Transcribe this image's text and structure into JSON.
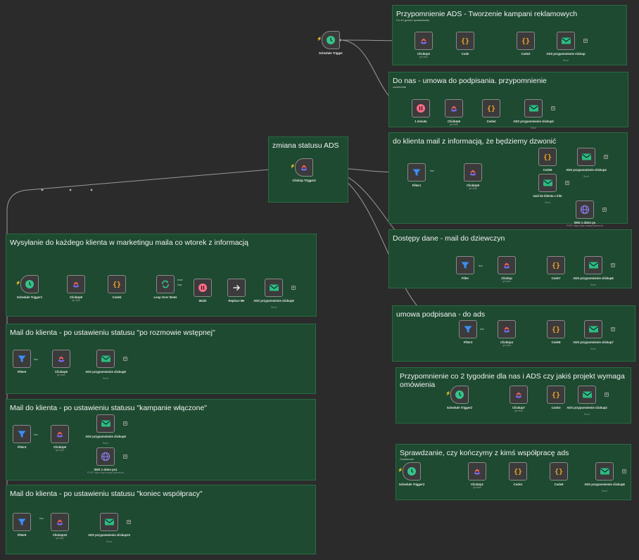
{
  "canvas": {
    "background": "#2b2b2b"
  },
  "colors": {
    "group_fill": "#1d4a30",
    "group_border": "#2a6b43",
    "node_fill": "#3b3b3b",
    "edge": "#9a9a9a",
    "icon_clickup": "#7b68ee",
    "icon_code": "#f5a623",
    "icon_mail": "#2bbd7e",
    "icon_filter": "#3b8ff7",
    "icon_wait": "#ff6d8a",
    "icon_http": "#8b7ff5",
    "trigger_bolt": "#ff8a3c"
  },
  "groups": [
    {
      "id": "g1",
      "title": "Przypomnienie ADS - Tworzenie kampani reklamowych",
      "subtitle": "Co 40 godzin sprawdzamy"
    },
    {
      "id": "g2",
      "title": "Do nas - umowa do podpisania. przypomnienie",
      "subtitle": "codziennie"
    },
    {
      "id": "g3",
      "title": "zmiana statusu ADS",
      "subtitle": ""
    },
    {
      "id": "g4",
      "title": "do klienta mail z informacją, że będziemy dzwonić",
      "subtitle": ""
    },
    {
      "id": "g5",
      "title": "Wysyłanie do każdego klienta w marketingu maila co wtorek z informacją",
      "subtitle": ""
    },
    {
      "id": "g6",
      "title": "Dostępy dane - mail do dziewczyn",
      "subtitle": ""
    },
    {
      "id": "g7",
      "title": "Mail do klienta - po ustawieniu statusu \"po rozmowie wstępnej\"",
      "subtitle": ""
    },
    {
      "id": "g8",
      "title": "umowa podpisana - do ads",
      "subtitle": ""
    },
    {
      "id": "g9",
      "title": "Przypomnienie co 2 tygodnie dla nas i ADS czy jakiś projekt wymaga omówienia",
      "subtitle": ""
    },
    {
      "id": "g10",
      "title": "Mail do klienta - po ustawieniu statusu \"kampanie włączone\"",
      "subtitle": ""
    },
    {
      "id": "g11",
      "title": "Sprawdzanie, czy kończymy z kimś współpracę ads",
      "subtitle": "Codziennie"
    },
    {
      "id": "g12",
      "title": "Mail do klienta - po ustawieniu statusu \"koniec współpracy\"",
      "subtitle": ""
    }
  ],
  "nodes": [
    {
      "id": "n_sched_main",
      "icon": "clock",
      "label": "Schedule Trigger",
      "sub": ""
    },
    {
      "id": "n_cu2",
      "icon": "clickup",
      "label": "ClickUp2",
      "sub": "get:task"
    },
    {
      "id": "n_code",
      "icon": "code",
      "label": "Code",
      "sub": ""
    },
    {
      "id": "n_code2",
      "icon": "code",
      "label": "Code2",
      "sub": ""
    },
    {
      "id": "n_mail_ads",
      "icon": "mail",
      "label": "ADS przypomnienie clickup",
      "sub": "Send"
    },
    {
      "id": "n_wait1",
      "icon": "wait",
      "label": "1 minuta",
      "sub": ""
    },
    {
      "id": "n_cu6",
      "icon": "clickup",
      "label": "ClickUp6",
      "sub": "get:task"
    },
    {
      "id": "n_code4",
      "icon": "code",
      "label": "Code4",
      "sub": ""
    },
    {
      "id": "n_mail_ads3",
      "icon": "mail",
      "label": "ADS przypomnienie clickup3",
      "sub": "Send"
    },
    {
      "id": "n_cu_trig3",
      "icon": "clickup",
      "label": "ClickUp Trigger3",
      "sub": ""
    },
    {
      "id": "n_filter1",
      "icon": "filter",
      "label": "Filter1",
      "sub": ""
    },
    {
      "id": "n_cu9",
      "icon": "clickup",
      "label": "ClickUp9",
      "sub": "get:task"
    },
    {
      "id": "n_code6",
      "icon": "code",
      "label": "Code6",
      "sub": ""
    },
    {
      "id": "n_mail_ads4",
      "icon": "mail",
      "label": "ADS przypomnienie clickup4",
      "sub": "Send"
    },
    {
      "id": "n_mail_info",
      "icon": "mail",
      "label": "mail do klienta z info",
      "sub": "Send"
    },
    {
      "id": "n_http1",
      "icon": "http",
      "label": "SMS 1 dzien po",
      "sub": "POST: https://api.smsapi.pl/sms.do"
    },
    {
      "id": "n_sched1",
      "icon": "clock",
      "label": "Schedule Trigger1",
      "sub": ""
    },
    {
      "id": "n_cu8",
      "icon": "clickup",
      "label": "ClickUp8",
      "sub": "get:task"
    },
    {
      "id": "n_code5",
      "icon": "code",
      "label": "Code5",
      "sub": ""
    },
    {
      "id": "n_loop",
      "icon": "loop",
      "label": "Loop Over Items",
      "sub": ""
    },
    {
      "id": "n_wait2",
      "icon": "wait",
      "label": "Wait2",
      "sub": ""
    },
    {
      "id": "n_replace",
      "icon": "arrow",
      "label": "Replace Me",
      "sub": ""
    },
    {
      "id": "n_mail_ads5",
      "icon": "mail",
      "label": "ADS przypomnienie clickup5",
      "sub": "Send"
    },
    {
      "id": "n_filter_dost",
      "icon": "filter",
      "label": "Filter",
      "sub": ""
    },
    {
      "id": "n_cu_dost",
      "icon": "clickup",
      "label": "ClickUp",
      "sub": "get:task"
    },
    {
      "id": "n_code7",
      "icon": "code",
      "label": "Code7",
      "sub": ""
    },
    {
      "id": "n_mail_ads6",
      "icon": "mail",
      "label": "ADS przypomnienie clickup6",
      "sub": "Send"
    },
    {
      "id": "n_filter5",
      "icon": "filter",
      "label": "Filter5",
      "sub": ""
    },
    {
      "id": "n_cu5",
      "icon": "clickup",
      "label": "ClickUp5",
      "sub": "get:task"
    },
    {
      "id": "n_mail_ads8",
      "icon": "mail",
      "label": "ADS przypomnienie clickup8",
      "sub": "Send"
    },
    {
      "id": "n_filter3",
      "icon": "filter",
      "label": "Filter3",
      "sub": ""
    },
    {
      "id": "n_cu4",
      "icon": "clickup",
      "label": "ClickUp4",
      "sub": "get:task"
    },
    {
      "id": "n_code8",
      "icon": "code",
      "label": "Code8",
      "sub": ""
    },
    {
      "id": "n_mail_ads7",
      "icon": "mail",
      "label": "ADS przypomnienie clickup7",
      "sub": "Send"
    },
    {
      "id": "n_sched2",
      "icon": "clock",
      "label": "Schedule Trigger2",
      "sub": ""
    },
    {
      "id": "n_cu7",
      "icon": "clickup",
      "label": "ClickUp7",
      "sub": "get:task"
    },
    {
      "id": "n_code3",
      "icon": "code",
      "label": "Code3",
      "sub": ""
    },
    {
      "id": "n_mail_ads2",
      "icon": "mail",
      "label": "ADS przypomnienie clickup2",
      "sub": "Send"
    },
    {
      "id": "n_filter4",
      "icon": "filter",
      "label": "Filter4",
      "sub": ""
    },
    {
      "id": "n_cu6b",
      "icon": "clickup",
      "label": "ClickUp6",
      "sub": "get:task"
    },
    {
      "id": "n_mail_ads9",
      "icon": "mail",
      "label": "ADS przypomnienie clickup9",
      "sub": "Send"
    },
    {
      "id": "n_http2",
      "icon": "http",
      "label": "SMS 1 dzien po1",
      "sub": "POST: https://api.smsapi.pl/sms.do"
    },
    {
      "id": "n_sched3",
      "icon": "clock",
      "label": "Schedule Trigger3",
      "sub": ""
    },
    {
      "id": "n_cu1",
      "icon": "clickup",
      "label": "ClickUp1",
      "sub": "get:task"
    },
    {
      "id": "n_code1",
      "icon": "code",
      "label": "Code1",
      "sub": ""
    },
    {
      "id": "n_code9",
      "icon": "code",
      "label": "Code9",
      "sub": ""
    },
    {
      "id": "n_mail_ads_last",
      "icon": "mail",
      "label": "ADS przypomnienie clickup8",
      "sub": "Send"
    },
    {
      "id": "n_filter8",
      "icon": "filter",
      "label": "Filter8",
      "sub": ""
    },
    {
      "id": "n_cu10",
      "icon": "clickup",
      "label": "ClickUp10",
      "sub": "get:task"
    },
    {
      "id": "n_mail_ads10",
      "icon": "mail",
      "label": "ADS przypomnienie clickup10",
      "sub": "Send"
    }
  ],
  "edge_labels": {
    "true_label": "true",
    "items_label": "1 item",
    "done_label": "done",
    "loop_label": "loop"
  }
}
